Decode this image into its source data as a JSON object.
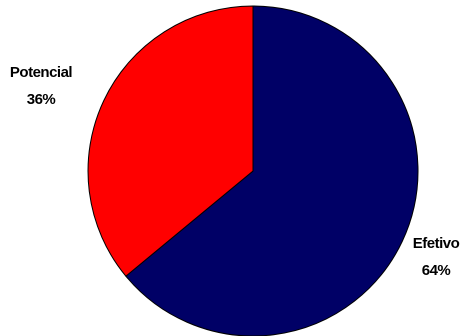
{
  "chart_data": {
    "type": "pie",
    "title": "",
    "slices": [
      {
        "label": "Efetivo",
        "value": 64,
        "value_label": "64%",
        "color": "#000066"
      },
      {
        "label": "Potencial",
        "value": 36,
        "value_label": "36%",
        "color": "#ff0000"
      }
    ],
    "start": "top",
    "direction": "clockwise",
    "legend": "none"
  }
}
